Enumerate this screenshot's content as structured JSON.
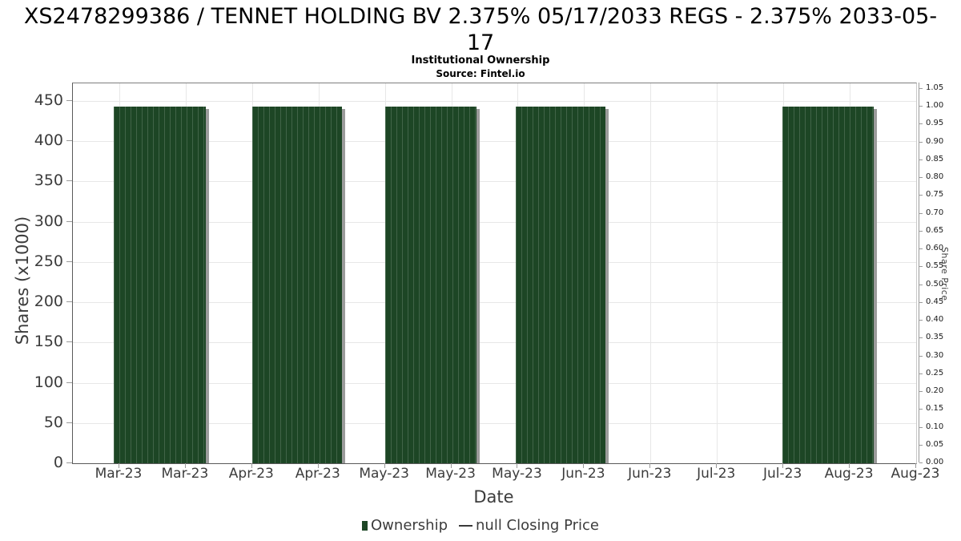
{
  "title": {
    "full": "XS2478299386 / TENNET HOLDING BV 2.375% 05/17/2033 REGS - 2.375% 2033-05-17",
    "line1": "XS2478299386 / TENNET HOLDING BV 2.375% 05/17/2033 REGS - 2.375% 2033-05-",
    "line2": "17",
    "subtitle": "Institutional Ownership",
    "source": "Source: Fintel.io"
  },
  "chart_data": {
    "type": "bar",
    "title": "Institutional Ownership",
    "xlabel": "Date",
    "ylabel_left": "Shares (x1000)",
    "ylabel_right": "Share Price",
    "grid": true,
    "x_tick_labels": [
      "Mar-23",
      "Mar-23",
      "Apr-23",
      "Apr-23",
      "May-23",
      "May-23",
      "May-23",
      "Jun-23",
      "Jun-23",
      "Jul-23",
      "Jul-23",
      "Aug-23",
      "Aug-23"
    ],
    "y_left_axis": {
      "label": "Shares (x1000)",
      "min": 0,
      "max": 450,
      "tick_step": 50,
      "ticks": [
        0,
        50,
        100,
        150,
        200,
        250,
        300,
        350,
        400,
        450
      ]
    },
    "y_right_axis": {
      "label": "Share Price",
      "min": 0.0,
      "max": 1.05,
      "tick_step": 0.05,
      "ticks": [
        "0.00",
        "0.05",
        "0.10",
        "0.15",
        "0.20",
        "0.25",
        "0.30",
        "0.35",
        "0.40",
        "0.45",
        "0.50",
        "0.55",
        "0.60",
        "0.65",
        "0.70",
        "0.75",
        "0.80",
        "0.85",
        "0.90",
        "0.95",
        "1.00",
        "1.05"
      ]
    },
    "series": [
      {
        "name": "Ownership",
        "type": "bar",
        "color": "#1d4625",
        "units": "shares (x1000)",
        "bars": [
          {
            "period": "mid Mar-23 to late Mar-23",
            "value": 443,
            "x0_frac": 0.0484,
            "x1_frac": 0.1576
          },
          {
            "period": "mid Apr-23 to late Apr-23",
            "value": 443,
            "x0_frac": 0.2127,
            "x1_frac": 0.3191
          },
          {
            "period": "early May-23 to mid May-23",
            "value": 443,
            "x0_frac": 0.3704,
            "x1_frac": 0.4786
          },
          {
            "period": "late May-23 to early Jun-23",
            "value": 443,
            "x0_frac": 0.5252,
            "x1_frac": 0.6315
          },
          {
            "period": "late Jul-23 to mid Aug-23",
            "value": 443,
            "x0_frac": 0.8414,
            "x1_frac": 0.9497
          }
        ]
      },
      {
        "name": "null Closing Price",
        "type": "line",
        "color": "#3a3a3a",
        "values": null
      }
    ],
    "legend": {
      "position": "bottom-center",
      "items": [
        {
          "label": "Ownership",
          "marker": "square",
          "color": "#1d4625"
        },
        {
          "label": "null Closing Price",
          "marker": "dash",
          "color": "#3a3a3a"
        }
      ]
    }
  }
}
